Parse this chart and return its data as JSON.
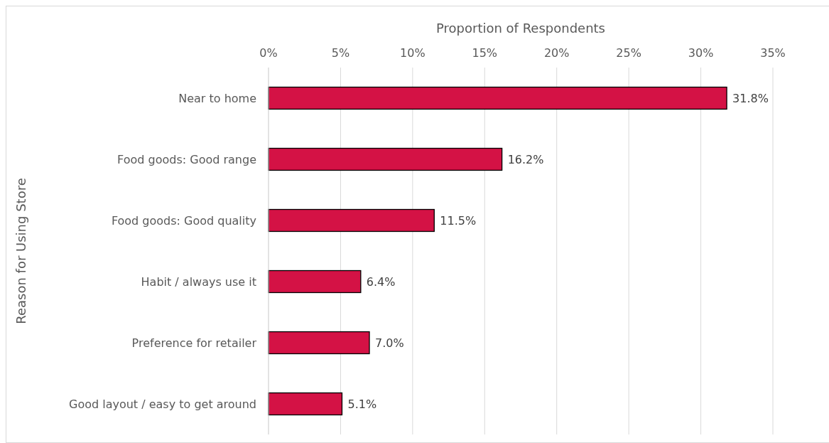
{
  "chart_data": {
    "type": "bar",
    "orientation": "horizontal",
    "xlabel": "Proportion of Respondents",
    "ylabel": "Reason for Using Store",
    "categories": [
      "Near to home",
      "Food goods: Good range",
      "Food goods: Good quality",
      "Habit / always use it",
      "Preference for retailer",
      "Good layout / easy to get around"
    ],
    "values": [
      31.8,
      16.2,
      11.5,
      6.4,
      7.0,
      5.1
    ],
    "value_labels": [
      "31.8%",
      "16.2%",
      "11.5%",
      "6.4%",
      "7.0%",
      "5.1%"
    ],
    "color": "#d41245",
    "xlim": [
      0,
      35
    ],
    "xticks": [
      {
        "value": 0,
        "label": "0%"
      },
      {
        "value": 5,
        "label": "5%"
      },
      {
        "value": 10,
        "label": "10%"
      },
      {
        "value": 15,
        "label": "15%"
      },
      {
        "value": 20,
        "label": "20%"
      },
      {
        "value": 25,
        "label": "25%"
      },
      {
        "value": 30,
        "label": "30%"
      },
      {
        "value": 35,
        "label": "35%"
      }
    ],
    "grid": "x"
  }
}
